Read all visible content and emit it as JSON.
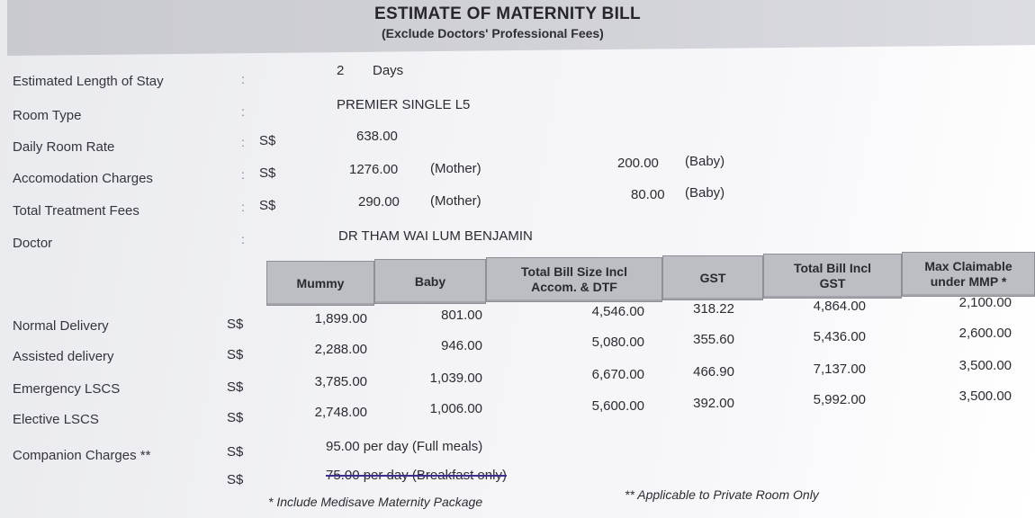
{
  "title": "ESTIMATE OF MATERNITY BILL",
  "subtitle": "(Exclude Doctors' Professional Fees)",
  "fields": {
    "stay": {
      "label": "Estimated Length of Stay",
      "value": "2",
      "unit": "Days"
    },
    "room_type": {
      "label": "Room Type",
      "value": "PREMIER SINGLE L5"
    },
    "daily_rate": {
      "label": "Daily Room Rate",
      "currency": "S$",
      "value": "638.00"
    },
    "accom": {
      "label": "Accomodation Charges",
      "currency": "S$",
      "mother": "1276.00",
      "mother_tag": "(Mother)",
      "baby": "200.00",
      "baby_tag": "(Baby)"
    },
    "treatment": {
      "label": "Total Treatment Fees",
      "currency": "S$",
      "mother": "290.00",
      "mother_tag": "(Mother)",
      "baby": "80.00",
      "baby_tag": "(Baby)"
    },
    "doctor": {
      "label": "Doctor",
      "value": "DR THAM WAI LUM BENJAMIN"
    }
  },
  "colon": ":",
  "table": {
    "headers": [
      "Mummy",
      "Baby",
      "Total Bill Size Incl Accom. & DTF",
      "GST",
      "Total Bill Incl GST",
      "Max Claimable under MMP *"
    ],
    "rows": [
      {
        "label": "Normal Delivery",
        "currency": "S$",
        "cells": [
          "1,899.00",
          "801.00",
          "4,546.00",
          "318.22",
          "4,864.00",
          "2,100.00"
        ]
      },
      {
        "label": "Assisted delivery",
        "currency": "S$",
        "cells": [
          "2,288.00",
          "946.00",
          "5,080.00",
          "355.60",
          "5,436.00",
          "2,600.00"
        ]
      },
      {
        "label": "Emergency LSCS",
        "currency": "S$",
        "cells": [
          "3,785.00",
          "1,039.00",
          "6,670.00",
          "466.90",
          "7,137.00",
          "3,500.00"
        ]
      },
      {
        "label": "Elective LSCS",
        "currency": "S$",
        "cells": [
          "2,748.00",
          "1,006.00",
          "5,600.00",
          "392.00",
          "5,992.00",
          "3,500.00"
        ]
      }
    ]
  },
  "companion": {
    "label": "Companion Charges **",
    "currency": "S$",
    "full_meals": "95.00 per day (Full meals)",
    "breakfast_only": "75.00 per day (Breakfast only)"
  },
  "footnotes": {
    "medisave": "* Include Medisave Maternity Package",
    "private": "** Applicable to Private Room Only"
  }
}
